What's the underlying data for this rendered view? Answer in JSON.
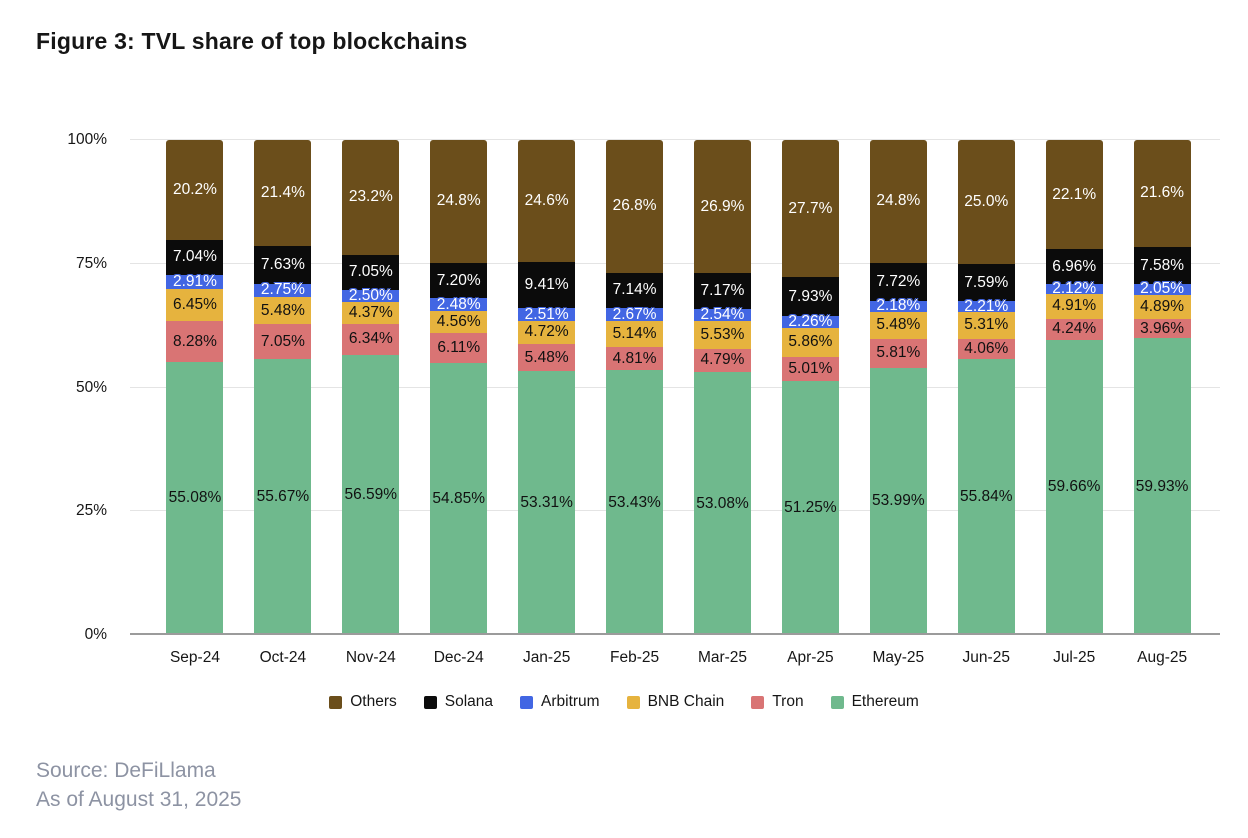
{
  "title": "Figure 3: TVL share of top blockchains",
  "source": {
    "line1": "Source: DeFiLlama",
    "line2": "As of August 31, 2025"
  },
  "chart_data": {
    "type": "bar",
    "stacked": true,
    "grid": true,
    "legend_position": "bottom",
    "ylim": [
      0,
      100
    ],
    "y_ticks": [
      {
        "label": "0%",
        "value": 0
      },
      {
        "label": "25%",
        "value": 25
      },
      {
        "label": "50%",
        "value": 50
      },
      {
        "label": "75%",
        "value": 75
      },
      {
        "label": "100%",
        "value": 100
      }
    ],
    "categories": [
      "Sep-24",
      "Oct-24",
      "Nov-24",
      "Dec-24",
      "Jan-25",
      "Feb-25",
      "Mar-25",
      "Apr-25",
      "May-25",
      "Jun-25",
      "Jul-25",
      "Aug-25"
    ],
    "series": [
      {
        "name": "Ethereum",
        "color": "#6fb98d",
        "label_color": "#111111",
        "values": [
          55.08,
          55.67,
          56.59,
          54.85,
          53.31,
          53.43,
          53.08,
          51.25,
          53.99,
          55.84,
          59.66,
          59.93
        ],
        "labels": [
          "55.08%",
          "55.67%",
          "56.59%",
          "54.85%",
          "53.31%",
          "53.43%",
          "53.08%",
          "51.25%",
          "53.99%",
          "55.84%",
          "59.66%",
          "59.93%"
        ]
      },
      {
        "name": "Tron",
        "color": "#d97474",
        "label_color": "#111111",
        "values": [
          8.28,
          7.05,
          6.34,
          6.11,
          5.48,
          4.81,
          4.79,
          5.01,
          5.81,
          4.06,
          4.24,
          3.96
        ],
        "labels": [
          "8.28%",
          "7.05%",
          "6.34%",
          "6.11%",
          "5.48%",
          "4.81%",
          "4.79%",
          "5.01%",
          "5.81%",
          "4.06%",
          "4.24%",
          "3.96%"
        ]
      },
      {
        "name": "BNB Chain",
        "color": "#e6b33e",
        "label_color": "#111111",
        "values": [
          6.45,
          5.48,
          4.37,
          4.56,
          4.72,
          5.14,
          5.53,
          5.86,
          5.48,
          5.31,
          4.91,
          4.89
        ],
        "labels": [
          "6.45%",
          "5.48%",
          "4.37%",
          "4.56%",
          "4.72%",
          "5.14%",
          "5.53%",
          "5.86%",
          "5.48%",
          "5.31%",
          "4.91%",
          "4.89%"
        ]
      },
      {
        "name": "Arbitrum",
        "color": "#4266e3",
        "label_color": "#ffffff",
        "label_outline": "#4266e3",
        "values": [
          2.91,
          2.75,
          2.5,
          2.48,
          2.51,
          2.67,
          2.54,
          2.26,
          2.18,
          2.21,
          2.12,
          2.05
        ],
        "labels": [
          "2.91%",
          "2.75%",
          "2.50%",
          "2.48%",
          "2.51%",
          "2.67%",
          "2.54%",
          "2.26%",
          "2.18%",
          "2.21%",
          "2.12%",
          "2.05%"
        ]
      },
      {
        "name": "Solana",
        "color": "#0b0b0b",
        "label_color": "#ffffff",
        "values": [
          7.04,
          7.63,
          7.05,
          7.2,
          9.41,
          7.14,
          7.17,
          7.93,
          7.72,
          7.59,
          6.96,
          7.58
        ],
        "labels": [
          "7.04%",
          "7.63%",
          "7.05%",
          "7.20%",
          "9.41%",
          "7.14%",
          "7.17%",
          "7.93%",
          "7.72%",
          "7.59%",
          "6.96%",
          "7.58%"
        ]
      },
      {
        "name": "Others",
        "color": "#6b4e1b",
        "label_color": "#ffffff",
        "values": [
          20.2,
          21.4,
          23.2,
          24.8,
          24.6,
          26.8,
          26.9,
          27.7,
          24.8,
          25.0,
          22.1,
          21.6
        ],
        "labels": [
          "20.2%",
          "21.4%",
          "23.2%",
          "24.8%",
          "24.6%",
          "26.8%",
          "26.9%",
          "27.7%",
          "24.8%",
          "25.0%",
          "22.1%",
          "21.6%"
        ]
      }
    ],
    "legend": [
      "Others",
      "Solana",
      "Arbitrum",
      "BNB Chain",
      "Tron",
      "Ethereum"
    ]
  }
}
